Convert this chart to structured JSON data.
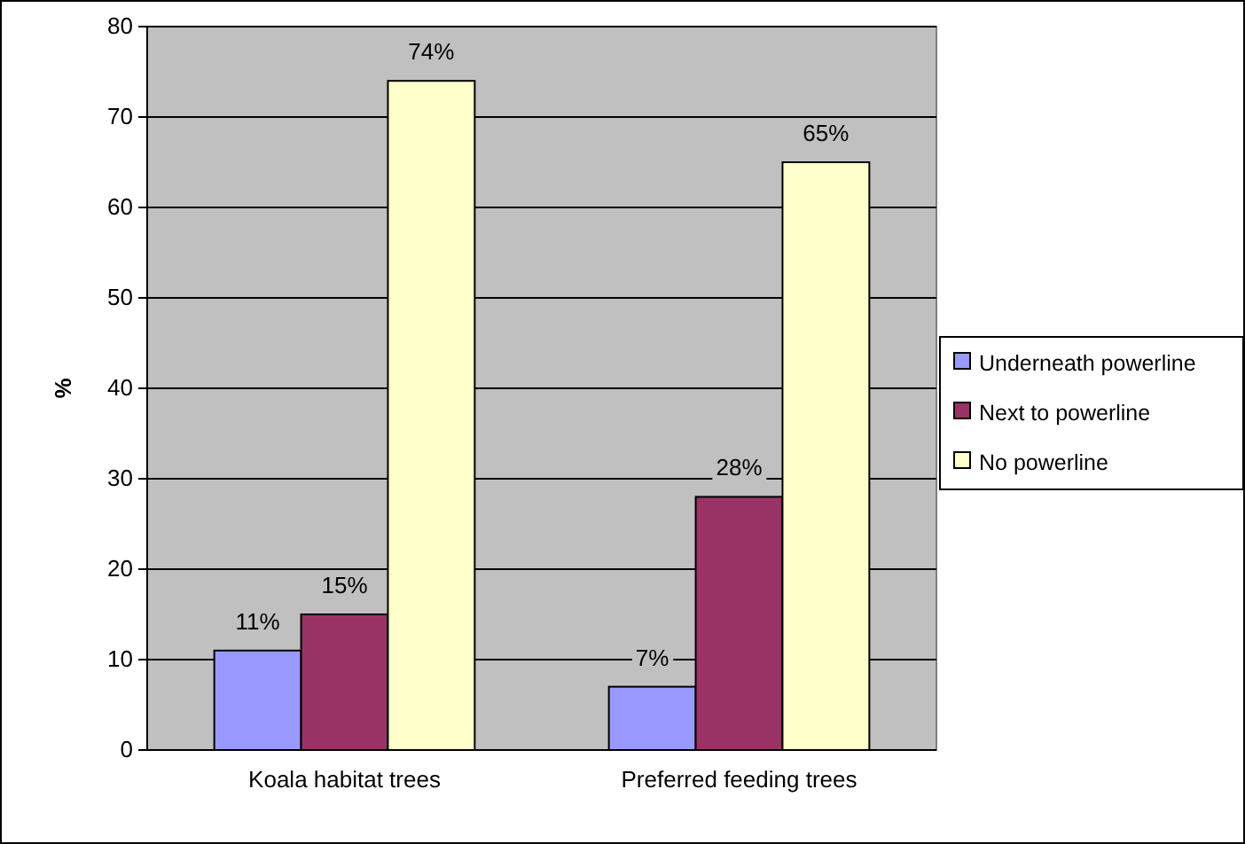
{
  "chart_data": {
    "type": "bar",
    "ylabel": "%",
    "categories": [
      "Koala habitat trees",
      "Preferred feeding trees"
    ],
    "series": [
      {
        "name": "Underneath powerline",
        "color": "#9999ff",
        "values": [
          11,
          7
        ],
        "value_labels": [
          "11%",
          "7%"
        ]
      },
      {
        "name": "Next to powerline",
        "color": "#993366",
        "values": [
          15,
          28
        ],
        "value_labels": [
          "15%",
          "28%"
        ]
      },
      {
        "name": "No powerline",
        "color": "#ffffcc",
        "values": [
          74,
          65
        ],
        "value_labels": [
          "74%",
          "65%"
        ]
      }
    ],
    "ylim": [
      0,
      80
    ],
    "yticks": [
      0,
      10,
      20,
      30,
      40,
      50,
      60,
      70,
      80
    ],
    "grid": "y",
    "legend": "right"
  }
}
